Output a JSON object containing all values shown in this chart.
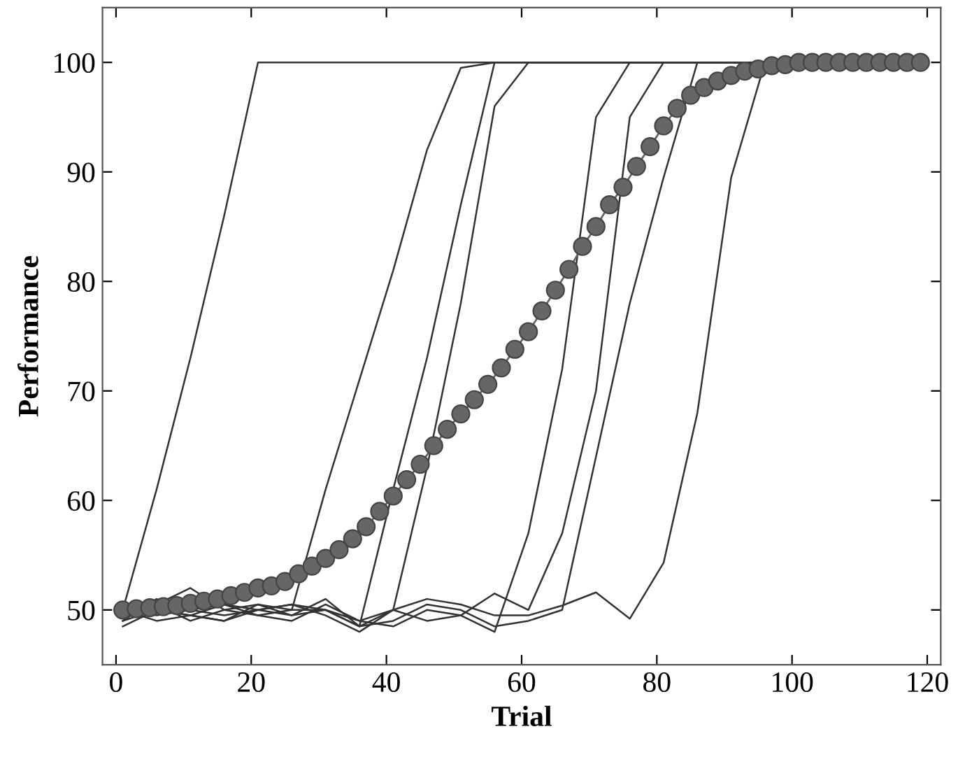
{
  "chart_data": {
    "type": "line",
    "xlabel": "Trial",
    "ylabel": "Performance",
    "xlim": [
      -2,
      122
    ],
    "ylim": [
      45,
      105
    ],
    "xticks": [
      0,
      20,
      40,
      60,
      80,
      100,
      120
    ],
    "yticks": [
      50,
      60,
      70,
      80,
      90,
      100
    ],
    "grid": false,
    "legend": false,
    "series": [
      {
        "color": "#333333",
        "marker": "none",
        "x": [
          1,
          6,
          11,
          16,
          21,
          26,
          31,
          36,
          41,
          46,
          51,
          56,
          61,
          66,
          71,
          76,
          81,
          86,
          91,
          96,
          101,
          106,
          111,
          116
        ],
        "values": [
          50,
          61,
          73,
          86,
          100,
          100,
          100,
          100,
          100,
          100,
          100,
          100,
          100,
          100,
          100,
          100,
          100,
          100,
          100,
          100,
          100,
          100,
          100,
          100
        ]
      },
      {
        "color": "#333333",
        "marker": "none",
        "x": [
          1,
          6,
          11,
          16,
          21,
          26,
          31,
          36,
          41,
          46,
          51,
          56,
          61,
          66,
          71,
          76,
          81,
          86,
          91,
          96,
          101,
          106,
          111,
          116
        ],
        "values": [
          49,
          51,
          50,
          50.5,
          49.5,
          50,
          61,
          71,
          81,
          92,
          99.5,
          100,
          100,
          100,
          100,
          100,
          100,
          100,
          100,
          100,
          100,
          100,
          100,
          100
        ]
      },
      {
        "color": "#333333",
        "marker": "none",
        "x": [
          1,
          6,
          11,
          16,
          21,
          26,
          31,
          36,
          41,
          46,
          51,
          56,
          61,
          66,
          71,
          76,
          81,
          86,
          91,
          96,
          101,
          106,
          111,
          116
        ],
        "values": [
          50,
          50.5,
          49,
          50,
          50.5,
          49.5,
          51,
          48.5,
          61,
          73,
          87,
          100,
          100,
          100,
          100,
          100,
          100,
          100,
          100,
          100,
          100,
          100,
          100,
          100
        ]
      },
      {
        "color": "#333333",
        "marker": "none",
        "x": [
          1,
          6,
          11,
          16,
          21,
          26,
          31,
          36,
          41,
          46,
          51,
          56,
          61,
          66,
          71,
          76,
          81,
          86,
          91,
          96,
          101,
          106,
          111,
          116
        ],
        "values": [
          48.5,
          50,
          49.5,
          49,
          50,
          50.5,
          50,
          49,
          50,
          63,
          78,
          96,
          100,
          100,
          100,
          100,
          100,
          100,
          100,
          100,
          100,
          100,
          100,
          100
        ]
      },
      {
        "color": "#333333",
        "marker": "none",
        "x": [
          1,
          6,
          11,
          16,
          21,
          26,
          31,
          36,
          41,
          46,
          51,
          56,
          61,
          66,
          71,
          76,
          81,
          86,
          91,
          96,
          101,
          106,
          111,
          116
        ],
        "values": [
          50,
          49.5,
          50,
          49.5,
          50,
          50.5,
          49.5,
          48,
          50,
          49,
          49.5,
          48,
          57,
          72,
          95,
          100,
          100,
          100,
          100,
          100,
          100,
          100,
          100,
          100
        ]
      },
      {
        "color": "#333333",
        "marker": "none",
        "x": [
          1,
          6,
          11,
          16,
          21,
          26,
          31,
          36,
          41,
          46,
          51,
          56,
          61,
          66,
          71,
          76,
          81,
          86,
          91,
          96,
          101,
          106,
          111,
          116
        ],
        "values": [
          49.5,
          50.5,
          52,
          50,
          49.5,
          49,
          50.5,
          49,
          48.5,
          50,
          49.5,
          51.5,
          50,
          57,
          70,
          95,
          100,
          100,
          100,
          100,
          100,
          100,
          100,
          100
        ]
      },
      {
        "color": "#333333",
        "marker": "none",
        "x": [
          1,
          6,
          11,
          16,
          21,
          26,
          31,
          36,
          41,
          46,
          51,
          56,
          61,
          66,
          71,
          76,
          81,
          86,
          91,
          96,
          101,
          106,
          111,
          116
        ],
        "values": [
          50,
          49,
          49.5,
          50.5,
          50,
          49.5,
          50,
          48.5,
          50,
          51,
          50.5,
          49.5,
          49.5,
          50.4,
          51.6,
          49.2,
          54.3,
          68,
          89.5,
          100,
          100,
          100,
          100,
          100
        ]
      },
      {
        "color": "#333333",
        "marker": "none",
        "x": [
          1,
          6,
          11,
          16,
          21,
          26,
          31,
          36,
          41,
          46,
          51,
          56,
          61,
          66,
          71,
          76,
          81,
          86,
          91,
          96,
          101,
          106,
          111,
          116
        ],
        "values": [
          49,
          50,
          49.5,
          49,
          50.5,
          50,
          50,
          48.5,
          49,
          50.5,
          50,
          48.5,
          49,
          50,
          64,
          78,
          89.5,
          100,
          100,
          100,
          100,
          100,
          100,
          100
        ]
      },
      {
        "color": "#666666",
        "marker": "circle",
        "x": [
          1,
          3,
          5,
          7,
          9,
          11,
          13,
          15,
          17,
          19,
          21,
          23,
          25,
          27,
          29,
          31,
          33,
          35,
          37,
          39,
          41,
          43,
          45,
          47,
          49,
          51,
          53,
          55,
          57,
          59,
          61,
          63,
          65,
          67,
          69,
          71,
          73,
          75,
          77,
          79,
          81,
          83,
          85,
          87,
          89,
          91,
          93,
          95,
          97,
          99,
          101,
          103,
          105,
          107,
          109,
          111,
          113,
          115,
          117,
          119
        ],
        "values": [
          50.0,
          50.1,
          50.2,
          50.3,
          50.4,
          50.6,
          50.8,
          51.0,
          51.3,
          51.6,
          52.0,
          52.2,
          52.6,
          53.3,
          54.0,
          54.7,
          55.5,
          56.5,
          57.6,
          59.0,
          60.4,
          61.9,
          63.3,
          65.0,
          66.5,
          67.9,
          69.2,
          70.6,
          72.1,
          73.8,
          75.4,
          77.3,
          79.2,
          81.1,
          83.2,
          85.0,
          87.0,
          88.6,
          90.5,
          92.3,
          94.2,
          95.8,
          97.0,
          97.7,
          98.3,
          98.8,
          99.2,
          99.4,
          99.7,
          99.8,
          100,
          100,
          100,
          100,
          100,
          100,
          100,
          100,
          100,
          100
        ]
      }
    ]
  }
}
